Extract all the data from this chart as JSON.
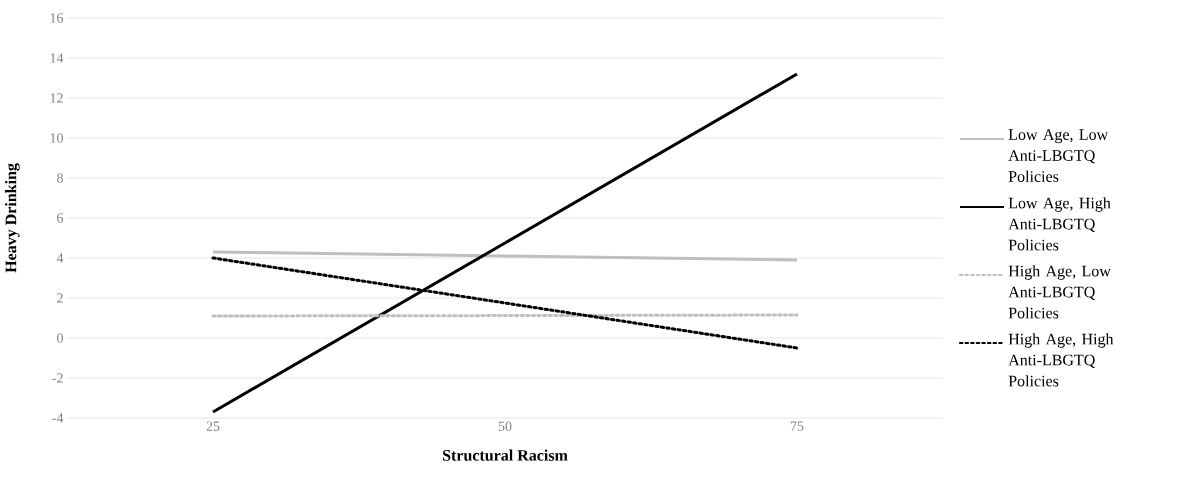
{
  "chart_data": {
    "type": "line",
    "xlabel": "Structural Racism",
    "ylabel": "Heavy Drinking",
    "categories": [
      "25",
      "50",
      "75"
    ],
    "series": [
      {
        "name": "Low Age, Low Anti-LBGTQ Policies",
        "color": "#bfbfbf",
        "line_style": "solid",
        "values": [
          4.3,
          4.1,
          3.9
        ]
      },
      {
        "name": "Low Age, High Anti-LBGTQ Policies",
        "color": "#000000",
        "line_style": "solid",
        "values": [
          -3.7,
          4.75,
          13.2
        ]
      },
      {
        "name": "High Age, Low Anti-LBGTQ Policies",
        "color": "#bfbfbf",
        "line_style": "dotted",
        "values": [
          1.1,
          1.12,
          1.15
        ]
      },
      {
        "name": "High Age, High Anti-LBGTQ Policies",
        "color": "#000000",
        "line_style": "dotted",
        "values": [
          4.0,
          1.75,
          -0.5
        ]
      }
    ],
    "ylim": [
      -4,
      16
    ],
    "yticks": [
      -4,
      -2,
      0,
      2,
      4,
      6,
      8,
      10,
      12,
      14,
      16
    ],
    "grid": "y",
    "legend": "right",
    "marker": "none"
  }
}
